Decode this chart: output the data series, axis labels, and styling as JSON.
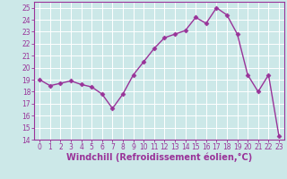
{
  "x": [
    0,
    1,
    2,
    3,
    4,
    5,
    6,
    7,
    8,
    9,
    10,
    11,
    12,
    13,
    14,
    15,
    16,
    17,
    18,
    19,
    20,
    21,
    22,
    23
  ],
  "y": [
    19.0,
    18.5,
    18.7,
    18.9,
    18.6,
    18.4,
    17.8,
    16.6,
    17.8,
    19.4,
    20.5,
    21.6,
    22.5,
    22.8,
    23.1,
    24.2,
    23.7,
    25.0,
    24.4,
    22.8,
    19.4,
    18.0,
    19.4,
    14.3
  ],
  "line_color": "#993399",
  "marker": "D",
  "marker_size": 2.5,
  "bg_color": "#cce8e8",
  "grid_color": "#b8d8d8",
  "xlabel": "Windchill (Refroidissement éolien,°C)",
  "ylim": [
    14,
    25.5
  ],
  "xlim": [
    -0.5,
    23.5
  ],
  "yticks": [
    14,
    15,
    16,
    17,
    18,
    19,
    20,
    21,
    22,
    23,
    24,
    25
  ],
  "xticks": [
    0,
    1,
    2,
    3,
    4,
    5,
    6,
    7,
    8,
    9,
    10,
    11,
    12,
    13,
    14,
    15,
    16,
    17,
    18,
    19,
    20,
    21,
    22,
    23
  ],
  "tick_label_fontsize": 5.5,
  "xlabel_fontsize": 7.0,
  "line_width": 1.0,
  "axis_color": "#993399",
  "spine_color": "#993399"
}
